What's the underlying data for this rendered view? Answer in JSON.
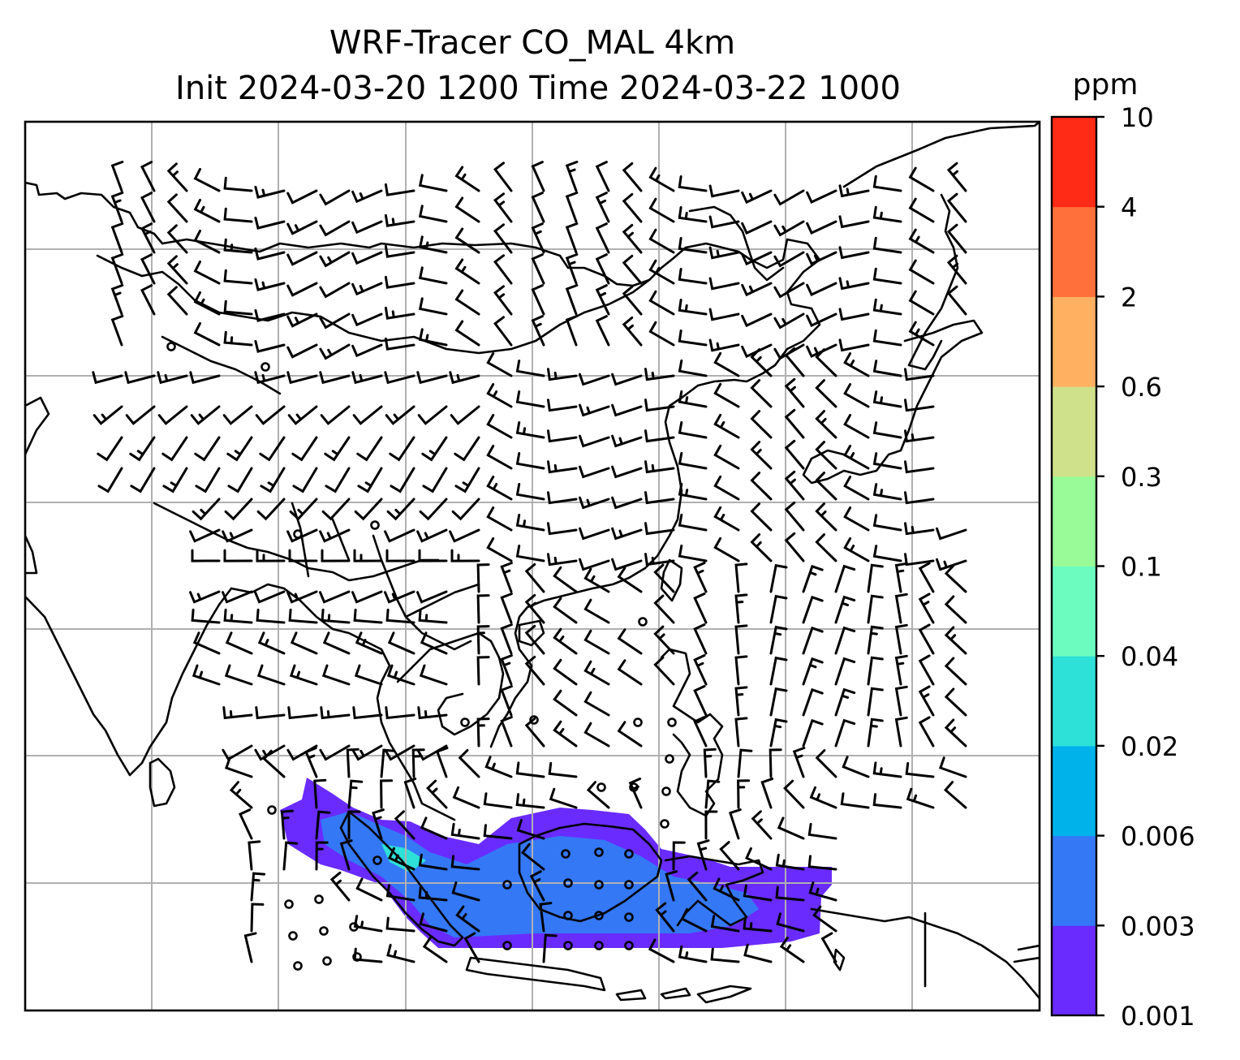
{
  "map": {
    "title_line1": "WRF-Tracer CO_MAL 4km",
    "title_line2": "Init 2024-03-20 1200 Time 2024-03-22 1000",
    "units": "ppm"
  },
  "colorbar": {
    "levels": [
      "0.001",
      "0.003",
      "0.006",
      "0.02",
      "0.04",
      "0.1",
      "0.3",
      "0.6",
      "2",
      "4",
      "10"
    ],
    "colors": [
      "#6a2bff",
      "#3478f6",
      "#00b2ea",
      "#2de0d8",
      "#6cfcc0",
      "#98fb98",
      "#cfe18a",
      "#ffb061",
      "#ff703b",
      "#ff2b17"
    ]
  },
  "tracer_colors": {
    "low": "#6a2bff",
    "mid": "#3478f6",
    "high": "#2de0d8"
  },
  "wind_field": {
    "symbol": "wind barbs",
    "calm_symbol": "circle"
  }
}
